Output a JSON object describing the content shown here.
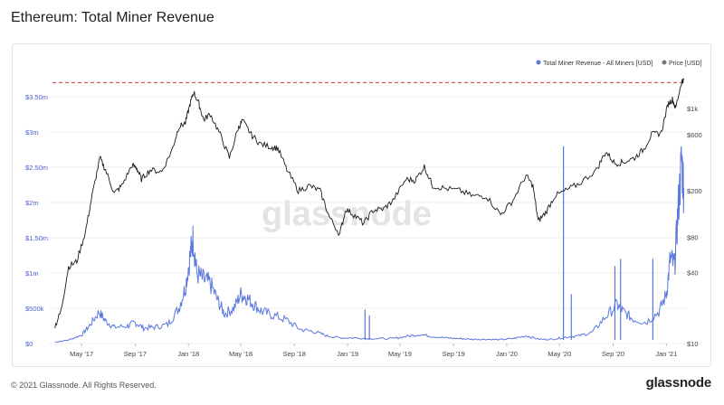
{
  "page": {
    "title": "Ethereum: Total Miner Revenue",
    "copyright": "© 2021 Glassnode. All Rights Reserved.",
    "brand": "glassnode",
    "watermark": "glassnode"
  },
  "colors": {
    "revenue": "#5b78de",
    "price": "#1a1a1a",
    "threshold": "#d9342b",
    "left_axis_text": "#4a5ccf",
    "right_axis_text": "#444444",
    "grid": "#eeeeee"
  },
  "chart_data": {
    "type": "line",
    "title": "Ethereum: Total Miner Revenue",
    "legend_position": "top-right",
    "grid": true,
    "x_ticks": [
      "May '17",
      "Sep '17",
      "Jan '18",
      "May '18",
      "Sep '18",
      "Jan '19",
      "May '19",
      "Sep '19",
      "Jan '20",
      "May '20",
      "Sep '20",
      "Jan '21"
    ],
    "y_left": {
      "scale": "linear",
      "range": [
        0,
        3500000
      ],
      "ticks": [
        {
          "value": 0,
          "label": "$0"
        },
        {
          "value": 500000,
          "label": "$500k"
        },
        {
          "value": 1000000,
          "label": "$1m"
        },
        {
          "value": 1500000,
          "label": "$1.50m"
        },
        {
          "value": 2000000,
          "label": "$2m"
        },
        {
          "value": 2500000,
          "label": "$2.50m"
        },
        {
          "value": 3000000,
          "label": "$3m"
        },
        {
          "value": 3500000,
          "label": "$3.50m"
        }
      ]
    },
    "y_right": {
      "scale": "log",
      "range": [
        10,
        2000
      ],
      "ticks": [
        {
          "value": 10,
          "label": "$10"
        },
        {
          "value": 40,
          "label": "$40"
        },
        {
          "value": 80,
          "label": "$80"
        },
        {
          "value": 200,
          "label": "$200"
        },
        {
          "value": 600,
          "label": "$600"
        },
        {
          "value": 1000,
          "label": "$1k"
        }
      ]
    },
    "reference_line": {
      "value": 3700000,
      "style": "dashed",
      "color": "#d9342b"
    },
    "series": [
      {
        "name": "Total Miner Revenue - All Miners [USD]",
        "axis": "left",
        "color": "#5b78de",
        "points": [
          [
            "2017-03-01",
            20000
          ],
          [
            "2017-04-01",
            50000
          ],
          [
            "2017-05-01",
            120000
          ],
          [
            "2017-05-20",
            260000
          ],
          [
            "2017-06-10",
            450000
          ],
          [
            "2017-06-25",
            320000
          ],
          [
            "2017-07-15",
            230000
          ],
          [
            "2017-08-15",
            250000
          ],
          [
            "2017-09-01",
            300000
          ],
          [
            "2017-09-20",
            220000
          ],
          [
            "2017-10-15",
            230000
          ],
          [
            "2017-11-15",
            270000
          ],
          [
            "2017-12-10",
            500000
          ],
          [
            "2017-12-25",
            800000
          ],
          [
            "2018-01-05",
            1250000
          ],
          [
            "2018-01-12",
            1500000
          ],
          [
            "2018-01-20",
            1000000
          ],
          [
            "2018-02-05",
            900000
          ],
          [
            "2018-02-20",
            850000
          ],
          [
            "2018-03-10",
            600000
          ],
          [
            "2018-03-25",
            420000
          ],
          [
            "2018-04-15",
            500000
          ],
          [
            "2018-05-01",
            700000
          ],
          [
            "2018-05-15",
            650000
          ],
          [
            "2018-06-01",
            550000
          ],
          [
            "2018-06-20",
            450000
          ],
          [
            "2018-07-15",
            400000
          ],
          [
            "2018-08-15",
            330000
          ],
          [
            "2018-09-15",
            200000
          ],
          [
            "2018-10-15",
            170000
          ],
          [
            "2018-11-15",
            110000
          ],
          [
            "2018-12-15",
            80000
          ],
          [
            "2019-01-15",
            80000
          ],
          [
            "2019-03-01",
            70000
          ],
          [
            "2019-04-15",
            70000
          ],
          [
            "2019-05-15",
            100000
          ],
          [
            "2019-06-15",
            130000
          ],
          [
            "2019-07-15",
            100000
          ],
          [
            "2019-08-15",
            80000
          ],
          [
            "2019-09-15",
            70000
          ],
          [
            "2019-10-15",
            60000
          ],
          [
            "2019-11-15",
            60000
          ],
          [
            "2019-12-15",
            55000
          ],
          [
            "2020-01-15",
            70000
          ],
          [
            "2020-02-15",
            110000
          ],
          [
            "2020-03-15",
            60000
          ],
          [
            "2020-04-15",
            60000
          ],
          [
            "2020-05-15",
            90000
          ],
          [
            "2020-06-15",
            110000
          ],
          [
            "2020-07-15",
            160000
          ],
          [
            "2020-08-15",
            380000
          ],
          [
            "2020-09-10",
            550000
          ],
          [
            "2020-09-25",
            450000
          ],
          [
            "2020-10-15",
            350000
          ],
          [
            "2020-11-15",
            300000
          ],
          [
            "2020-12-15",
            450000
          ],
          [
            "2021-01-01",
            700000
          ],
          [
            "2021-01-10",
            1200000
          ],
          [
            "2021-01-20",
            1100000
          ],
          [
            "2021-01-28",
            1900000
          ],
          [
            "2021-02-05",
            2600000
          ],
          [
            "2021-02-10",
            2200000
          ]
        ],
        "spikes": [
          [
            "2019-02-10",
            480000
          ],
          [
            "2019-02-20",
            400000
          ],
          [
            "2020-05-10",
            2800000
          ],
          [
            "2020-05-28",
            700000
          ],
          [
            "2020-09-05",
            1100000
          ],
          [
            "2020-09-18",
            1200000
          ],
          [
            "2020-12-01",
            1200000
          ]
        ]
      },
      {
        "name": "Price [USD]",
        "axis": "right",
        "color": "#1a1a1a",
        "points": [
          [
            "2017-03-01",
            14
          ],
          [
            "2017-03-15",
            19
          ],
          [
            "2017-04-01",
            45
          ],
          [
            "2017-04-20",
            50
          ],
          [
            "2017-05-10",
            90
          ],
          [
            "2017-05-25",
            180
          ],
          [
            "2017-06-12",
            380
          ],
          [
            "2017-06-25",
            300
          ],
          [
            "2017-07-15",
            190
          ],
          [
            "2017-08-01",
            220
          ],
          [
            "2017-08-25",
            330
          ],
          [
            "2017-09-05",
            310
          ],
          [
            "2017-09-15",
            250
          ],
          [
            "2017-10-05",
            300
          ],
          [
            "2017-11-01",
            290
          ],
          [
            "2017-11-25",
            450
          ],
          [
            "2017-12-10",
            700
          ],
          [
            "2017-12-25",
            750
          ],
          [
            "2018-01-05",
            1100
          ],
          [
            "2018-01-13",
            1380
          ],
          [
            "2018-01-25",
            1100
          ],
          [
            "2018-02-05",
            800
          ],
          [
            "2018-02-20",
            900
          ],
          [
            "2018-03-15",
            600
          ],
          [
            "2018-04-05",
            380
          ],
          [
            "2018-04-25",
            680
          ],
          [
            "2018-05-05",
            790
          ],
          [
            "2018-05-25",
            600
          ],
          [
            "2018-06-15",
            500
          ],
          [
            "2018-07-10",
            470
          ],
          [
            "2018-07-25",
            460
          ],
          [
            "2018-08-15",
            300
          ],
          [
            "2018-09-10",
            200
          ],
          [
            "2018-10-05",
            220
          ],
          [
            "2018-10-30",
            200
          ],
          [
            "2018-11-20",
            120
          ],
          [
            "2018-12-14",
            85
          ],
          [
            "2018-12-28",
            140
          ],
          [
            "2019-01-15",
            125
          ],
          [
            "2019-02-07",
            105
          ],
          [
            "2019-02-28",
            136
          ],
          [
            "2019-03-25",
            140
          ],
          [
            "2019-04-15",
            165
          ],
          [
            "2019-05-15",
            250
          ],
          [
            "2019-06-05",
            245
          ],
          [
            "2019-06-26",
            320
          ],
          [
            "2019-07-15",
            220
          ],
          [
            "2019-08-10",
            210
          ],
          [
            "2019-09-15",
            200
          ],
          [
            "2019-10-15",
            180
          ],
          [
            "2019-11-15",
            180
          ],
          [
            "2019-12-18",
            125
          ],
          [
            "2020-01-15",
            165
          ],
          [
            "2020-02-14",
            270
          ],
          [
            "2020-03-01",
            220
          ],
          [
            "2020-03-13",
            110
          ],
          [
            "2020-03-30",
            130
          ],
          [
            "2020-04-20",
            180
          ],
          [
            "2020-05-15",
            200
          ],
          [
            "2020-06-15",
            230
          ],
          [
            "2020-07-25",
            300
          ],
          [
            "2020-08-15",
            430
          ],
          [
            "2020-09-05",
            340
          ],
          [
            "2020-09-25",
            350
          ],
          [
            "2020-10-20",
            380
          ],
          [
            "2020-11-10",
            450
          ],
          [
            "2020-11-28",
            600
          ],
          [
            "2020-12-20",
            620
          ],
          [
            "2021-01-05",
            1100
          ],
          [
            "2021-01-15",
            1200
          ],
          [
            "2021-01-22",
            1000
          ],
          [
            "2021-02-05",
            1700
          ],
          [
            "2021-02-10",
            1750
          ]
        ]
      }
    ]
  }
}
